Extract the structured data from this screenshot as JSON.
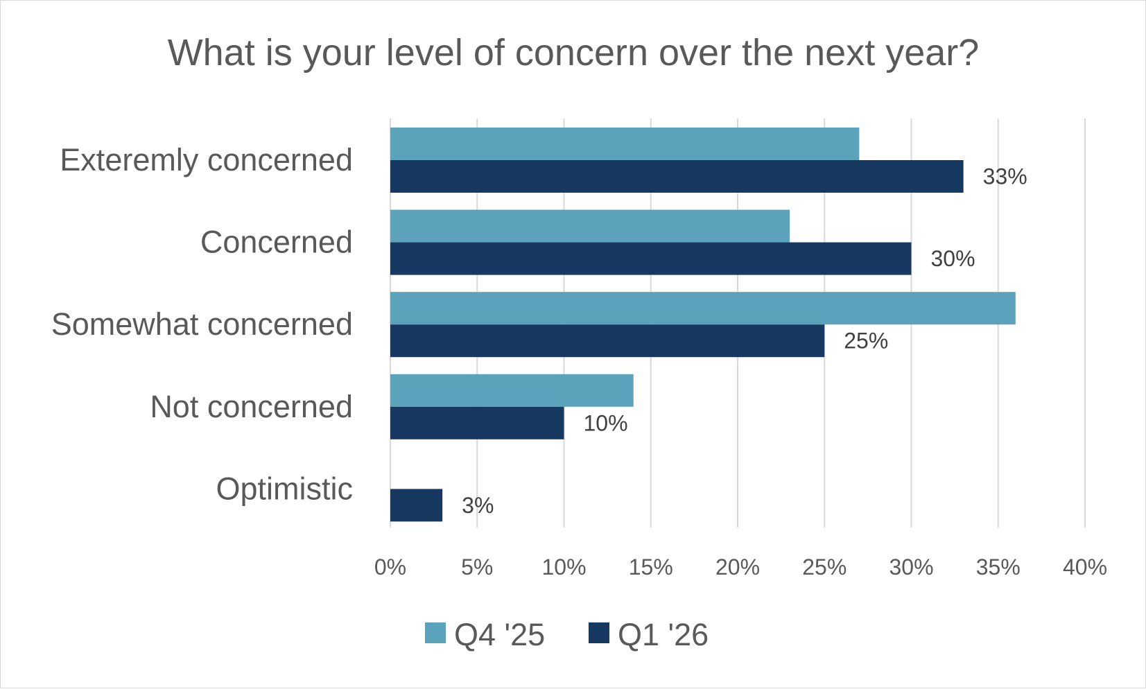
{
  "chart_data": {
    "type": "bar",
    "orientation": "horizontal",
    "title": "What is your level of concern over the next year?",
    "categories": [
      "Exteremly concerned",
      "Concerned",
      "Somewhat concerned",
      "Not concerned",
      "Optimistic"
    ],
    "series": [
      {
        "name": "Q4 '25",
        "color": "#5BA3BA",
        "values": [
          27,
          23,
          36,
          14,
          0
        ],
        "labels": [
          "",
          "",
          "",
          "",
          ""
        ]
      },
      {
        "name": "Q1 '26",
        "color": "#173861",
        "values": [
          33,
          30,
          25,
          10,
          3
        ],
        "labels": [
          "33%",
          "30%",
          "25%",
          "10%",
          "3%"
        ]
      }
    ],
    "xlim": [
      0,
      40
    ],
    "xticks": [
      0,
      5,
      10,
      15,
      20,
      25,
      30,
      35,
      40
    ],
    "xtick_labels": [
      "0%",
      "5%",
      "10%",
      "15%",
      "20%",
      "25%",
      "30%",
      "35%",
      "40%"
    ],
    "grid": "vertical",
    "legend": "bottom"
  }
}
